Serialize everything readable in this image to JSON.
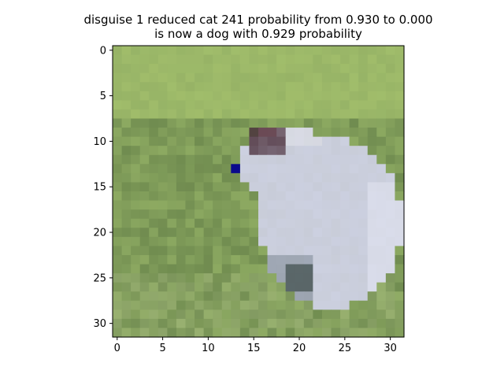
{
  "figure": {
    "title_line_1": "disguise 1 reduced cat 241 probability from 0.930 to 0.000",
    "title_line_2": "is now a dog with 0.929 probability"
  },
  "image": {
    "subject": "pixelated 32x32 photo of a white cat lying in green grass",
    "grid_size": 32,
    "perturbed_pixel": {
      "col": 13,
      "row": 13,
      "color": "#0a0a8c"
    }
  },
  "axes": {
    "x_ticks": [
      "0",
      "5",
      "10",
      "15",
      "20",
      "25",
      "30"
    ],
    "y_ticks": [
      "0",
      "5",
      "10",
      "15",
      "20",
      "25",
      "30"
    ],
    "x_tick_values": [
      0,
      5,
      10,
      15,
      20,
      25,
      30
    ],
    "y_tick_values": [
      0,
      5,
      10,
      15,
      20,
      25,
      30
    ]
  },
  "colors": {
    "grass": "#8fac63",
    "grass_dark": "#5f7a45",
    "cat_fur": "#c8ccd8",
    "cat_shadow": "#7f8a96",
    "ear": "#4a2f3c",
    "frame": "#000000"
  }
}
